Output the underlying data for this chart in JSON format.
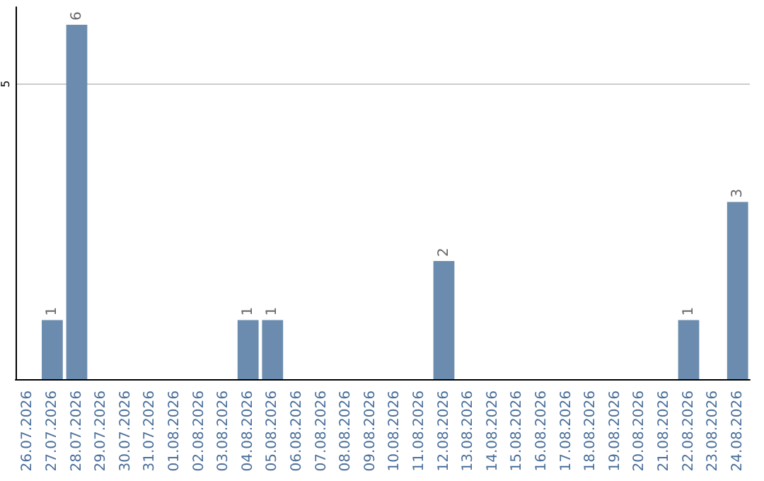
{
  "chart_data": {
    "type": "bar",
    "categories": [
      "26.07.2026",
      "27.07.2026",
      "28.07.2026",
      "29.07.2026",
      "30.07.2026",
      "31.07.2026",
      "01.08.2026",
      "02.08.2026",
      "03.08.2026",
      "04.08.2026",
      "05.08.2026",
      "06.08.2026",
      "07.08.2026",
      "08.08.2026",
      "09.08.2026",
      "10.08.2026",
      "11.08.2026",
      "12.08.2026",
      "13.08.2026",
      "14.08.2026",
      "15.08.2026",
      "16.08.2026",
      "17.08.2026",
      "18.08.2026",
      "19.08.2026",
      "20.08.2026",
      "21.08.2026",
      "22.08.2026",
      "23.08.2026",
      "24.08.2026"
    ],
    "values": [
      0,
      1,
      6,
      0,
      0,
      0,
      0,
      0,
      0,
      1,
      1,
      0,
      0,
      0,
      0,
      0,
      0,
      2,
      0,
      0,
      0,
      0,
      0,
      0,
      0,
      0,
      0,
      1,
      0,
      3
    ],
    "value_labels": [
      null,
      "1",
      "6",
      null,
      null,
      null,
      null,
      null,
      null,
      "1",
      "1",
      null,
      null,
      null,
      null,
      null,
      null,
      "2",
      null,
      null,
      null,
      null,
      null,
      null,
      null,
      null,
      null,
      "1",
      null,
      "3"
    ],
    "color": "#6b8cae",
    "ylim": [
      0,
      6.3
    ],
    "yticks": [
      5
    ],
    "grid": "y"
  }
}
